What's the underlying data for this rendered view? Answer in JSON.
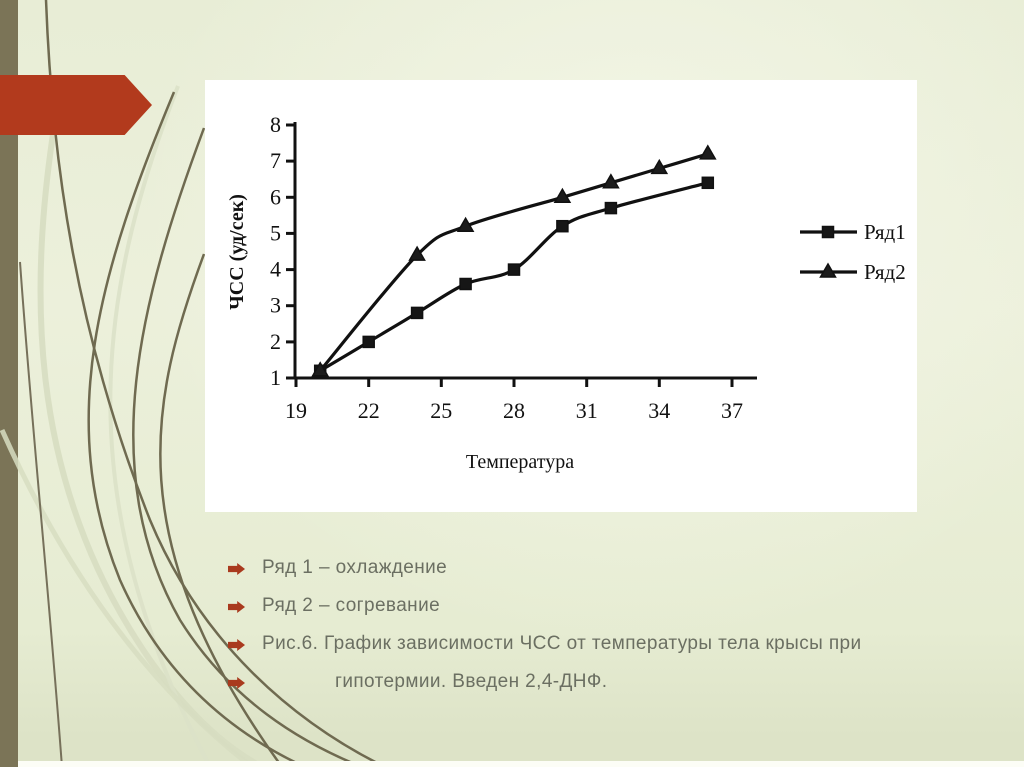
{
  "slide": {
    "bullets": [
      {
        "label": "Ряд 1 – охлаждение"
      },
      {
        "label": "Ряд 2 – согревание"
      },
      {
        "label": "Рис.6. График зависимости ЧСС от температуры тела крысы при"
      },
      {
        "label": "гипотермии. Введен 2,4-ДНФ."
      }
    ],
    "colors": {
      "accent_red": "#b23a1d",
      "bullet_red": "#a93a1e",
      "sidebar_olive": "#7b7457",
      "swoosh_dark": "#6f6a50",
      "swoosh_light": "#d7ddc1",
      "body_text": "#6b6f62",
      "chart_ink": "#111111",
      "background": "#e8edd6",
      "chart_background": "#ffffff"
    }
  },
  "chart_data": {
    "type": "line",
    "title": "",
    "xlabel": "Температура",
    "ylabel": "ЧСС (уд/сек)",
    "x_ticks": [
      19,
      22,
      25,
      28,
      31,
      34,
      37
    ],
    "y_ticks": [
      1,
      2,
      3,
      4,
      5,
      6,
      7,
      8
    ],
    "xlim": [
      19,
      38
    ],
    "ylim": [
      1,
      8
    ],
    "grid": false,
    "legend_position": "right-outside",
    "line_color": "#111111",
    "series": [
      {
        "name": "Ряд1",
        "marker": "square",
        "x": [
          20,
          22,
          24,
          26,
          28,
          30,
          32,
          36
        ],
        "y": [
          1.2,
          2.0,
          2.8,
          3.6,
          4.0,
          5.2,
          5.7,
          6.4
        ]
      },
      {
        "name": "Ряд2",
        "marker": "triangle",
        "x": [
          20,
          24,
          26,
          30,
          32,
          34,
          36
        ],
        "y": [
          1.2,
          4.4,
          5.2,
          6.0,
          6.4,
          6.8,
          7.2
        ]
      }
    ]
  }
}
